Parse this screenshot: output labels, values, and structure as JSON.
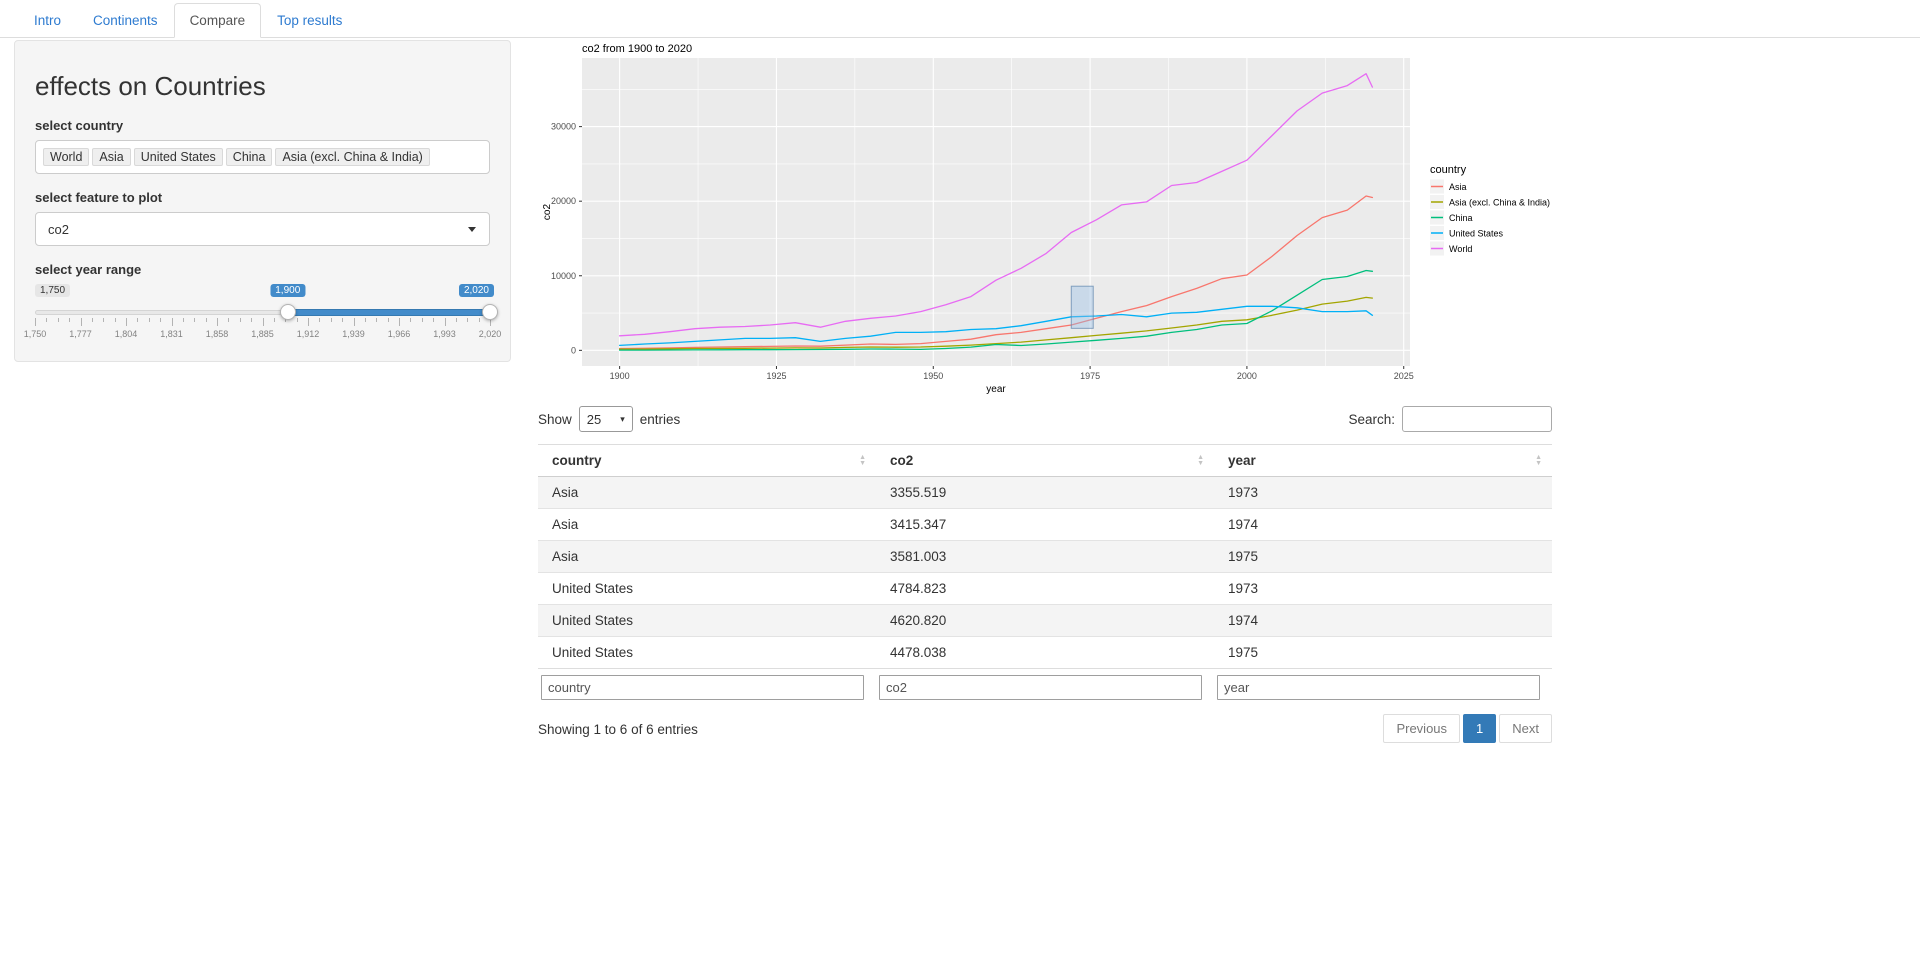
{
  "tabs": {
    "items": [
      {
        "label": "Intro",
        "active": false
      },
      {
        "label": "Continents",
        "active": false
      },
      {
        "label": "Compare",
        "active": true
      },
      {
        "label": "Top results",
        "active": false
      }
    ]
  },
  "sidebar": {
    "title": "effects on Countries",
    "country_label": "select country",
    "country_tags": [
      "World",
      "Asia",
      "United States",
      "China",
      "Asia (excl. China & India)"
    ],
    "feature_label": "select feature to plot",
    "feature_value": "co2",
    "year_label": "select year range",
    "slider": {
      "min": 1750,
      "max": 2020,
      "from": 1900,
      "to": 2020,
      "min_label": "1,750",
      "from_label": "1,900",
      "to_label": "2,020",
      "ticks": [
        "1,750",
        "1,777",
        "1,804",
        "1,831",
        "1,858",
        "1,885",
        "1,912",
        "1,939",
        "1,966",
        "1,993",
        "2,020"
      ]
    }
  },
  "chart_data": {
    "type": "line",
    "title": "co2 from 1900 to 2020",
    "xlabel": "year",
    "ylabel": "co2",
    "legend_title": "country",
    "legend_position": "right",
    "panel_bg": "#EBEBEB",
    "grid": true,
    "xlim": [
      1894,
      2026
    ],
    "ylim": [
      -2100,
      39200
    ],
    "x_ticks": [
      1900,
      1925,
      1950,
      1975,
      2000,
      2025
    ],
    "y_ticks": [
      0,
      10000,
      20000,
      30000
    ],
    "brush": {
      "x1": 1972,
      "x2": 1975.5,
      "y1": 2950,
      "y2": 8600
    },
    "x": [
      1900,
      1904,
      1908,
      1912,
      1916,
      1920,
      1924,
      1928,
      1932,
      1936,
      1940,
      1944,
      1948,
      1952,
      1956,
      1960,
      1964,
      1968,
      1972,
      1976,
      1980,
      1984,
      1988,
      1992,
      1996,
      2000,
      2004,
      2008,
      2012,
      2016,
      2019,
      2020
    ],
    "series": [
      {
        "name": "Asia",
        "color": "#F8766D",
        "values": [
          250,
          280,
          330,
          400,
          450,
          500,
          530,
          580,
          560,
          700,
          850,
          800,
          900,
          1200,
          1500,
          2100,
          2400,
          2900,
          3400,
          4300,
          5200,
          6000,
          7200,
          8300,
          9600,
          10100,
          12600,
          15400,
          17800,
          18800,
          20700,
          20500
        ]
      },
      {
        "name": "Asia (excl. China & India)",
        "color": "#A3A500",
        "values": [
          150,
          170,
          200,
          240,
          260,
          280,
          300,
          330,
          310,
          400,
          450,
          420,
          450,
          550,
          700,
          900,
          1100,
          1400,
          1700,
          2000,
          2300,
          2600,
          3000,
          3400,
          3900,
          4100,
          4700,
          5400,
          6200,
          6600,
          7100,
          7000
        ]
      },
      {
        "name": "China",
        "color": "#00BF7D",
        "values": [
          30,
          35,
          45,
          60,
          70,
          80,
          90,
          100,
          110,
          140,
          180,
          160,
          130,
          250,
          430,
          780,
          650,
          850,
          1100,
          1350,
          1600,
          1900,
          2400,
          2800,
          3400,
          3600,
          5300,
          7400,
          9500,
          9900,
          10700,
          10600
        ]
      },
      {
        "name": "United States",
        "color": "#00B0F6",
        "values": [
          660,
          850,
          1000,
          1200,
          1400,
          1600,
          1600,
          1700,
          1200,
          1600,
          1900,
          2400,
          2400,
          2500,
          2800,
          2900,
          3300,
          3900,
          4500,
          4600,
          4800,
          4500,
          5000,
          5100,
          5500,
          5900,
          5900,
          5700,
          5200,
          5200,
          5300,
          4700
        ]
      },
      {
        "name": "World",
        "color": "#E76BF3",
        "values": [
          1950,
          2150,
          2500,
          2900,
          3100,
          3200,
          3400,
          3700,
          3100,
          3900,
          4300,
          4600,
          5200,
          6100,
          7200,
          9400,
          11000,
          13000,
          15800,
          17500,
          19500,
          19900,
          22100,
          22500,
          24000,
          25500,
          28800,
          32100,
          34500,
          35500,
          37100,
          35300
        ]
      }
    ]
  },
  "table": {
    "show_label": "Show",
    "page_size": "25",
    "entries_label": "entries",
    "search_label": "Search:",
    "columns": [
      "country",
      "co2",
      "year"
    ],
    "rows": [
      [
        "Asia",
        "3355.519",
        "1973"
      ],
      [
        "Asia",
        "3415.347",
        "1974"
      ],
      [
        "Asia",
        "3581.003",
        "1975"
      ],
      [
        "United States",
        "4784.823",
        "1973"
      ],
      [
        "United States",
        "4620.820",
        "1974"
      ],
      [
        "United States",
        "4478.038",
        "1975"
      ]
    ],
    "filters": [
      "country",
      "co2",
      "year"
    ],
    "info": "Showing 1 to 6 of 6 entries",
    "pagination": {
      "previous": "Previous",
      "page": "1",
      "next": "Next"
    }
  },
  "icons": {
    "sort_asc": "▲",
    "sort_desc": "▼",
    "dropdown_caret": "▾"
  },
  "colors": {
    "accent": "#337ab7",
    "slider": "#428bca",
    "tab_link": "#2e7bd0"
  }
}
